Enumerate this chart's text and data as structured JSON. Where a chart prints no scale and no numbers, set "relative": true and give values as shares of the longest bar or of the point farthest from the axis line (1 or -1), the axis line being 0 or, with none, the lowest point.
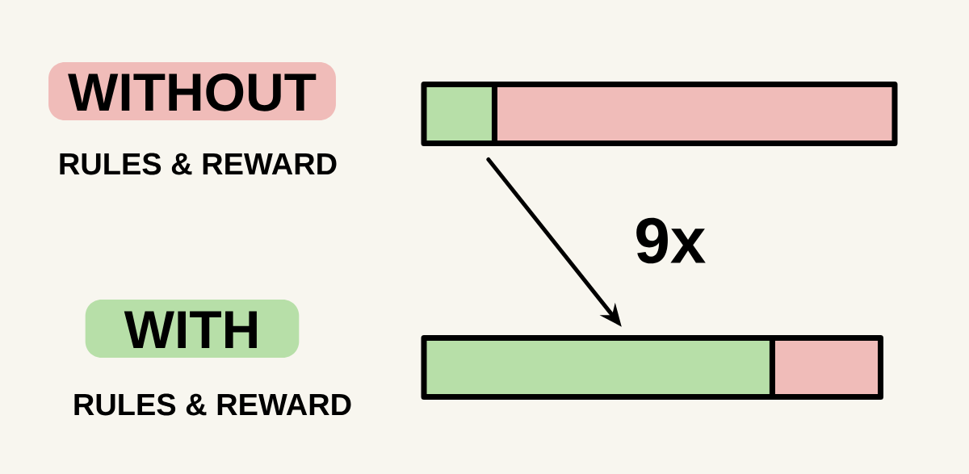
{
  "chart_data": {
    "type": "bar",
    "orientation": "horizontal",
    "stacked": true,
    "relative": true,
    "categories": [
      "WITHOUT",
      "WITH"
    ],
    "series": [
      {
        "color": "#b7dfa8",
        "values": [
          0.15,
          0.74
        ]
      },
      {
        "color": "#f0bcb9",
        "values": [
          0.85,
          0.23
        ]
      }
    ],
    "annotations": [
      "RULES & REWARD",
      "RULES & REWARD",
      "9x"
    ]
  }
}
